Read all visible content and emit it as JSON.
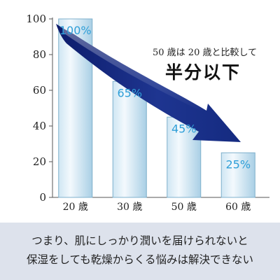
{
  "chart_data": {
    "type": "bar",
    "categories": [
      "20 歳",
      "30 歳",
      "50 歳",
      "60 歳"
    ],
    "values": [
      100,
      65,
      45,
      25
    ],
    "data_labels": [
      "100%",
      "65%",
      "45%",
      "25%"
    ],
    "yticks": [
      0,
      20,
      40,
      60,
      80,
      100
    ],
    "ylim": [
      0,
      100
    ],
    "title": "",
    "xlabel": "",
    "ylabel": "",
    "grid": false,
    "colors": {
      "bar_fill_light": "#eef6fb",
      "bar_fill_dark": "#a9d0e6",
      "bar_stroke": "#7fb0cc",
      "data_label": "#2f9fd8",
      "arrow_dark": "#0d1c6b",
      "arrow_light": "#5878c8",
      "axis": "#555555"
    }
  },
  "annotation": {
    "small": "50 歳は 20 歳と比較して",
    "big": "半分以下"
  },
  "caption": {
    "line1": "つまり、肌にしっかり潤いを届けられないと",
    "line2": "保湿をしても乾燥からくる悩みは解決できない"
  }
}
